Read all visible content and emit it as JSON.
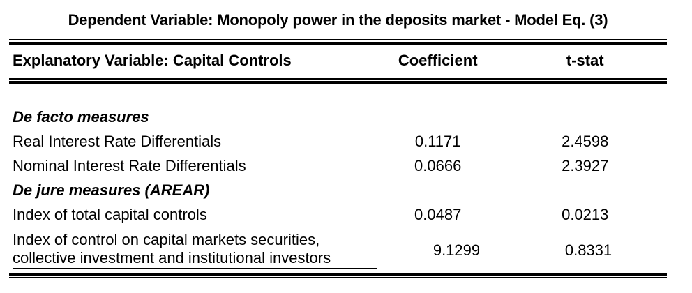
{
  "title": "Dependent Variable: Monopoly power in the deposits market - Model Eq. (3)",
  "table": {
    "columns": [
      "Explanatory Variable: Capital Controls",
      "Coefficient",
      "t-stat"
    ],
    "sections": [
      {
        "header": "De facto measures",
        "rows": [
          {
            "label": "Real Interest Rate Differentials",
            "coefficient": "0.1171",
            "t_stat": "2.4598"
          },
          {
            "label": "Nominal Interest Rate Differentials",
            "coefficient": "0.0666",
            "t_stat": "2.3927"
          }
        ]
      },
      {
        "header": "De jure measures (AREAR)",
        "rows": [
          {
            "label": "Index of total capital controls",
            "coefficient": "0.0487",
            "t_stat": "0.0213"
          },
          {
            "label": "Index of control on capital markets securities, collective investment and institutional investors",
            "coefficient": "9.1299",
            "t_stat": "0.8331"
          }
        ]
      }
    ]
  },
  "colors": {
    "text": "#000000",
    "background": "#ffffff",
    "rule": "#000000"
  }
}
